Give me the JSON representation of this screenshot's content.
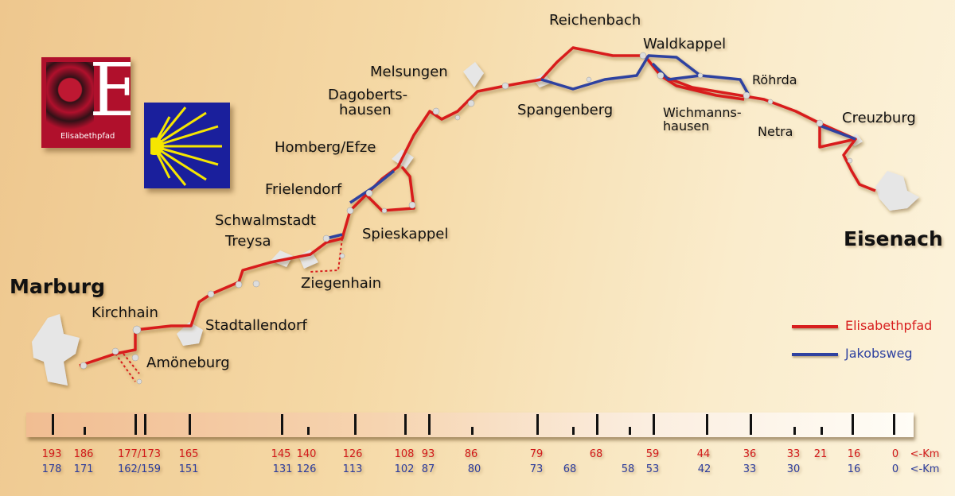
{
  "places": {
    "marburg": "Marburg",
    "kirchhain": "Kirchhain",
    "amoeneburg": "Amöneburg",
    "stadtallendorf": "Stadtallendorf",
    "schwalmstadt": "Schwalmstadt",
    "treysa": "Treysa",
    "ziegenhain": "Ziegenhain",
    "spieskappel": "Spieskappel",
    "frielendorf": "Frielendorf",
    "homberg": "Homberg/Efze",
    "dagoberts1": "Dagoberts-",
    "dagoberts2": "hausen",
    "melsungen": "Melsungen",
    "spangenberg": "Spangenberg",
    "reichenbach": "Reichenbach",
    "waldkappel": "Waldkappel",
    "roehrda": "Röhrda",
    "wichmanns1": "Wichmanns-",
    "wichmanns2": "hausen",
    "netra": "Netra",
    "creuzburg": "Creuzburg",
    "eisenach": "Eisenach"
  },
  "logos": {
    "elisabethpfad_text": "Elisabethpfad",
    "elisabethpfad_letter": "E"
  },
  "legend": [
    {
      "label": "Elisabethpfad",
      "color": "#d81e1e"
    },
    {
      "label": "Jakobsweg",
      "color": "#2f42a0"
    }
  ],
  "scale": {
    "unit_label": "<-Km",
    "elisabethpfad_km": [
      "193",
      "186",
      "177/173",
      "165",
      "145",
      "140",
      "126",
      "108",
      "93",
      "86",
      "79",
      "68",
      "59",
      "44",
      "36",
      "33",
      "21",
      "16",
      "0"
    ],
    "jakobsweg_km": [
      "178",
      "171",
      "162/159",
      "151",
      "131",
      "126",
      "113",
      "102",
      "87",
      "80",
      "73",
      "68",
      "58",
      "53",
      "42",
      "33",
      "30",
      "16",
      "0"
    ]
  },
  "colors": {
    "route_red": "#d81e1e",
    "route_blue": "#2f42a0",
    "logo_red": "#b0102c",
    "logo_blue": "#1a1f9c",
    "shell_yellow": "#f6e600"
  }
}
